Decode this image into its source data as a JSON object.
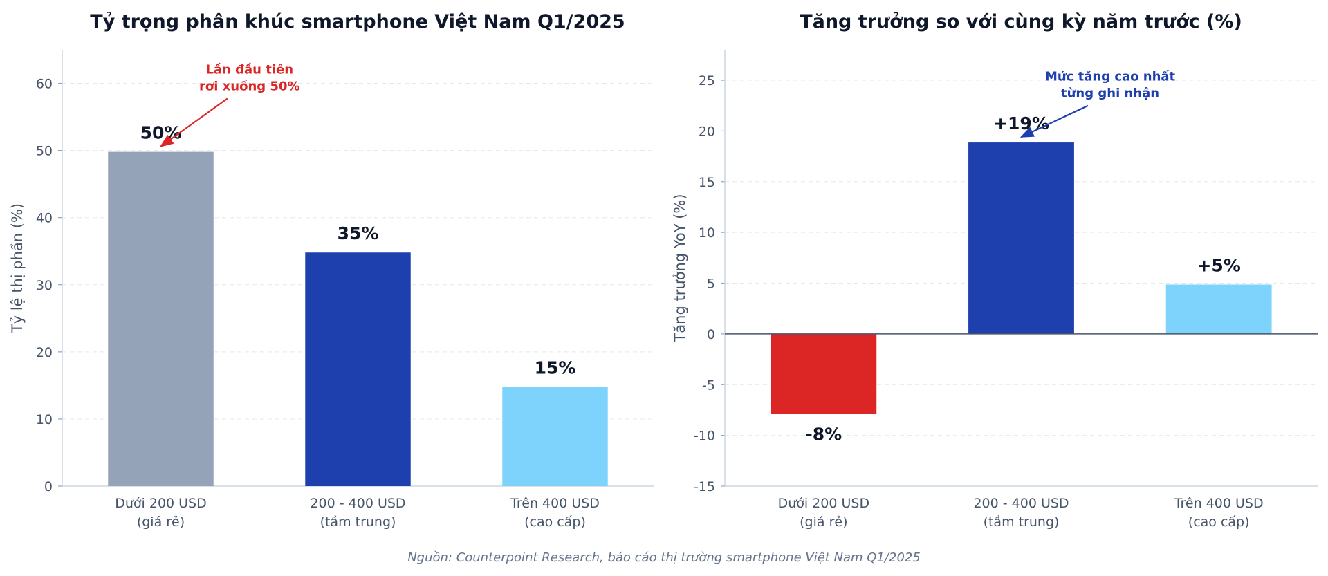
{
  "chart_data": [
    {
      "type": "bar",
      "title": "Tỷ trọng phân khúc smartphone Việt Nam Q1/2025",
      "ylabel": "Tỷ lệ thị phần (%)",
      "ylim": [
        0,
        65
      ],
      "yticks": [
        0,
        10,
        20,
        30,
        40,
        50,
        60
      ],
      "grid": true,
      "categories": [
        [
          "Dưới 200 USD",
          "(giá rẻ)"
        ],
        [
          "200 - 400 USD",
          "(tầm trung)"
        ],
        [
          "Trên 400 USD",
          "(cao cấp)"
        ]
      ],
      "values": [
        50,
        35,
        15
      ],
      "data_labels": [
        "50%",
        "35%",
        "15%"
      ],
      "colors": [
        "#94a3b8",
        "#1e40af",
        "#7dd3fc"
      ],
      "annotation": {
        "lines": [
          "Lần đầu tiên",
          "rơi xuống 50%"
        ],
        "color": "#dc2626",
        "target_category": 0,
        "target_value": 50,
        "text_value": 60
      }
    },
    {
      "type": "bar",
      "title": "Tăng trưởng so với cùng kỳ năm trước (%)",
      "ylabel": "Tăng trưởng YoY (%)",
      "ylim": [
        -15,
        28
      ],
      "yticks": [
        -15,
        -10,
        -5,
        0,
        5,
        10,
        15,
        20,
        25
      ],
      "grid": true,
      "categories": [
        [
          "Dưới 200 USD",
          "(giá rẻ)"
        ],
        [
          "200 - 400 USD",
          "(tầm trung)"
        ],
        [
          "Trên 400 USD",
          "(cao cấp)"
        ]
      ],
      "values": [
        -8,
        19,
        5
      ],
      "data_labels": [
        "-8%",
        "+19%",
        "+5%"
      ],
      "colors": [
        "#dc2626",
        "#1e40af",
        "#7dd3fc"
      ],
      "annotation": {
        "lines": [
          "Mức tăng cao nhất",
          "từng ghi nhận"
        ],
        "color": "#1e40af",
        "target_category": 1,
        "target_value": 19,
        "text_value": 24
      }
    }
  ],
  "source": "Nguồn: Counterpoint Research, báo cáo thị trường smartphone Việt Nam Q1/2025"
}
